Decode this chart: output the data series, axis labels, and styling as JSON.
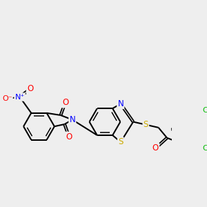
{
  "background_color": "#eeeeee",
  "atom_colors": {
    "O": "#ff0000",
    "N": "#0000ff",
    "S": "#ccaa00",
    "Cl": "#00bb00",
    "C": "#000000"
  },
  "figsize": [
    3.0,
    3.0
  ],
  "dpi": 100
}
